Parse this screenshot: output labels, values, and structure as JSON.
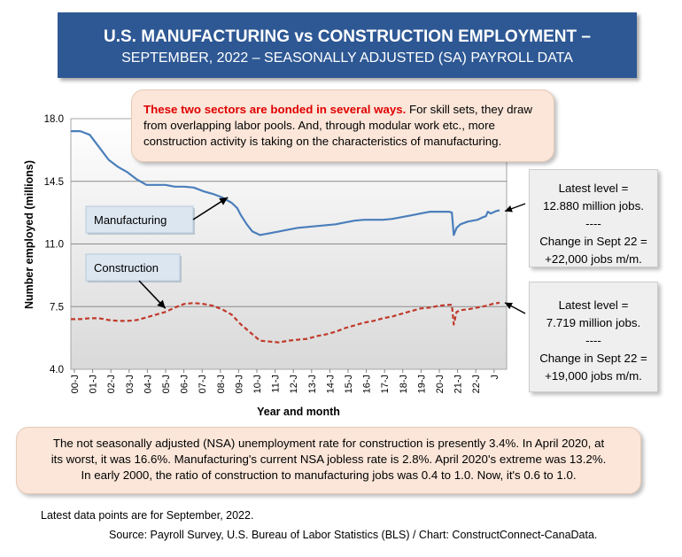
{
  "header": {
    "title_line1": "U.S. MANUFACTURING vs CONSTRUCTION EMPLOYMENT –",
    "title_line2": "SEPTEMBER, 2022 – SEASONALLY ADJUSTED (SA) PAYROLL DATA"
  },
  "top_note": {
    "lead": "These two sectors are bonded in several ways.",
    "line1_rest": " For skill sets, they draw",
    "line2": "from overlapping labor pools. And, through modular work etc., more",
    "line3": "construction activity is taking on the characteristics of manufacturing."
  },
  "manufacturing_box": {
    "l1": "Latest level =",
    "l2": "12.880 million jobs.",
    "l3": "----",
    "l4": "Change in Sept 22 =",
    "l5": "+22,000 jobs m/m."
  },
  "construction_box": {
    "l1": "Latest level =",
    "l2": "7.719 million jobs.",
    "l3": "----",
    "l4": "Change in Sept 22 =",
    "l5": "+19,000 jobs m/m."
  },
  "bottom_note": {
    "line1": "The not seasonally adjusted (NSA) unemployment rate for construction is presently 3.4%. In April 2020, at",
    "line2": "its worst, it was 16.6%. Manufacturing's current NSA jobless rate is 2.8%. April 2020's extreme was 13.2%.",
    "line3": "In early 2000, the ratio of construction to manufacturing jobs was 0.4 to 1.0. Now, it's 0.6 to 1.0."
  },
  "footnote": "Latest data points are for September, 2022.",
  "source": "Source: Payroll Survey, U.S. Bureau of Labor Statistics (BLS) / Chart: ConstructConnect-CanaData.",
  "colors": {
    "title_bg": "#2e5894",
    "manufacturing": "#4a7ebb",
    "construction": "#c0392b",
    "callout_bg": "#fbe6d9"
  },
  "chart_data": {
    "type": "line",
    "title": "",
    "xlabel": "Year and month",
    "ylabel": "Number employed (millions)",
    "ylim": [
      4.0,
      18.0
    ],
    "yticks": [
      4.0,
      7.5,
      11.0,
      14.5,
      18.0
    ],
    "ytick_labels": [
      "4.0",
      "7.5",
      "11.0",
      "14.5",
      "18.0"
    ],
    "grid": true,
    "xlim": [
      2000.0,
      2022.67
    ],
    "xtick_labels": [
      "00-J",
      "01-J",
      "02-J",
      "03-J",
      "04-J",
      "05-J",
      "06-J",
      "07-J",
      "08-J",
      "09-J",
      "10-J",
      "11-J",
      "12-J",
      "13-J",
      "14-J",
      "15-J",
      "16-J",
      "17-J",
      "18-J",
      "19-J",
      "20-J",
      "21-J",
      "22-J",
      "J"
    ],
    "series": [
      {
        "name": "Manufacturing",
        "style": "solid",
        "points": [
          [
            2000.0,
            17.3
          ],
          [
            2000.5,
            17.3
          ],
          [
            2001.0,
            17.1
          ],
          [
            2001.5,
            16.4
          ],
          [
            2002.0,
            15.7
          ],
          [
            2002.5,
            15.3
          ],
          [
            2003.0,
            15.0
          ],
          [
            2003.5,
            14.6
          ],
          [
            2004.0,
            14.3
          ],
          [
            2004.5,
            14.3
          ],
          [
            2005.0,
            14.3
          ],
          [
            2005.5,
            14.2
          ],
          [
            2006.0,
            14.2
          ],
          [
            2006.5,
            14.15
          ],
          [
            2007.0,
            13.95
          ],
          [
            2007.5,
            13.8
          ],
          [
            2008.0,
            13.6
          ],
          [
            2008.5,
            13.3
          ],
          [
            2008.8,
            13.0
          ],
          [
            2009.0,
            12.6
          ],
          [
            2009.3,
            12.1
          ],
          [
            2009.6,
            11.7
          ],
          [
            2010.0,
            11.5
          ],
          [
            2010.5,
            11.6
          ],
          [
            2011.0,
            11.7
          ],
          [
            2011.5,
            11.8
          ],
          [
            2012.0,
            11.9
          ],
          [
            2012.5,
            11.95
          ],
          [
            2013.0,
            12.0
          ],
          [
            2013.5,
            12.05
          ],
          [
            2014.0,
            12.1
          ],
          [
            2014.5,
            12.2
          ],
          [
            2015.0,
            12.3
          ],
          [
            2015.5,
            12.35
          ],
          [
            2016.0,
            12.35
          ],
          [
            2016.5,
            12.35
          ],
          [
            2017.0,
            12.4
          ],
          [
            2017.5,
            12.5
          ],
          [
            2018.0,
            12.6
          ],
          [
            2018.5,
            12.7
          ],
          [
            2019.0,
            12.8
          ],
          [
            2019.5,
            12.8
          ],
          [
            2020.0,
            12.8
          ],
          [
            2020.15,
            12.75
          ],
          [
            2020.25,
            11.5
          ],
          [
            2020.4,
            11.9
          ],
          [
            2020.6,
            12.1
          ],
          [
            2021.0,
            12.25
          ],
          [
            2021.5,
            12.35
          ],
          [
            2021.8,
            12.5
          ],
          [
            2021.95,
            12.55
          ],
          [
            2022.05,
            12.8
          ],
          [
            2022.2,
            12.7
          ],
          [
            2022.5,
            12.84
          ],
          [
            2022.67,
            12.88
          ]
        ]
      },
      {
        "name": "Construction",
        "style": "dashed",
        "points": [
          [
            2000.0,
            6.8
          ],
          [
            2000.5,
            6.8
          ],
          [
            2001.0,
            6.85
          ],
          [
            2001.5,
            6.85
          ],
          [
            2002.0,
            6.75
          ],
          [
            2002.5,
            6.7
          ],
          [
            2003.0,
            6.7
          ],
          [
            2003.5,
            6.75
          ],
          [
            2004.0,
            6.9
          ],
          [
            2004.5,
            7.05
          ],
          [
            2005.0,
            7.2
          ],
          [
            2005.5,
            7.45
          ],
          [
            2006.0,
            7.65
          ],
          [
            2006.5,
            7.7
          ],
          [
            2007.0,
            7.65
          ],
          [
            2007.5,
            7.55
          ],
          [
            2008.0,
            7.35
          ],
          [
            2008.5,
            7.05
          ],
          [
            2009.0,
            6.5
          ],
          [
            2009.5,
            6.05
          ],
          [
            2010.0,
            5.6
          ],
          [
            2010.5,
            5.55
          ],
          [
            2011.0,
            5.5
          ],
          [
            2011.5,
            5.6
          ],
          [
            2012.0,
            5.65
          ],
          [
            2012.5,
            5.7
          ],
          [
            2013.0,
            5.85
          ],
          [
            2013.5,
            5.95
          ],
          [
            2014.0,
            6.1
          ],
          [
            2014.5,
            6.3
          ],
          [
            2015.0,
            6.45
          ],
          [
            2015.5,
            6.6
          ],
          [
            2016.0,
            6.7
          ],
          [
            2016.5,
            6.85
          ],
          [
            2017.0,
            6.95
          ],
          [
            2017.5,
            7.1
          ],
          [
            2018.0,
            7.25
          ],
          [
            2018.5,
            7.4
          ],
          [
            2019.0,
            7.45
          ],
          [
            2019.5,
            7.55
          ],
          [
            2020.0,
            7.6
          ],
          [
            2020.15,
            7.6
          ],
          [
            2020.25,
            6.5
          ],
          [
            2020.4,
            7.2
          ],
          [
            2020.6,
            7.3
          ],
          [
            2021.0,
            7.35
          ],
          [
            2021.5,
            7.45
          ],
          [
            2022.0,
            7.55
          ],
          [
            2022.3,
            7.65
          ],
          [
            2022.67,
            7.72
          ]
        ]
      }
    ],
    "annotations": [
      {
        "text": "Manufacturing",
        "target": [
          2008.3,
          13.6
        ]
      },
      {
        "text": "Construction",
        "target": [
          2005.0,
          7.4
        ]
      }
    ]
  }
}
